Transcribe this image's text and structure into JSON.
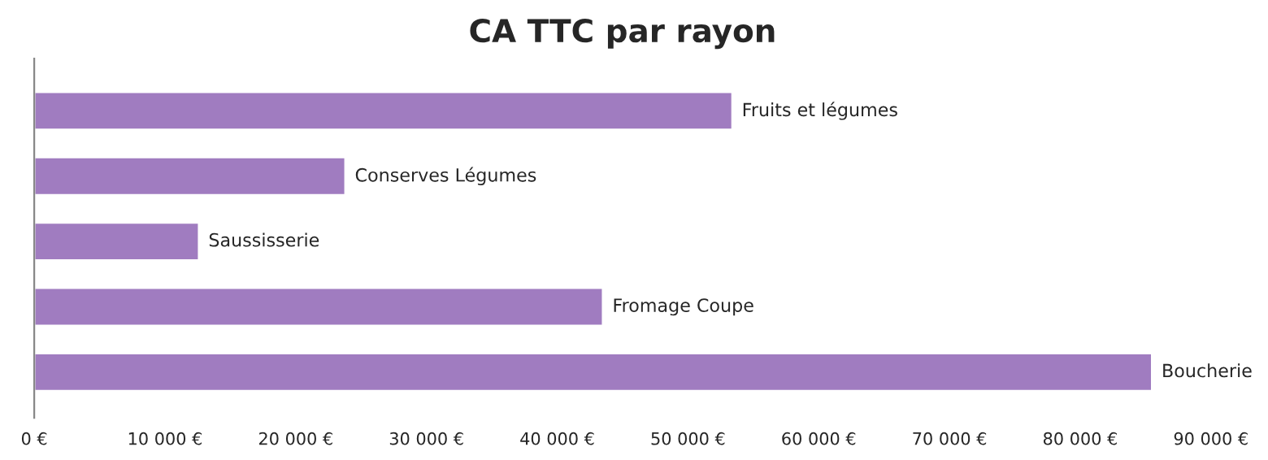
{
  "chart_data": {
    "type": "bar",
    "orientation": "horizontal",
    "title": "CA TTC par rayon",
    "categories": [
      "Fruits et légumes",
      "Conserves Légumes",
      "Saussisserie",
      "Fromage Coupe",
      "Boucherie"
    ],
    "values": [
      53400,
      23800,
      12600,
      43500,
      85500
    ],
    "color": "#a07cc0",
    "xlim": [
      0,
      90000
    ],
    "xticks": [
      {
        "value": 0,
        "label": "0 €"
      },
      {
        "value": 10000,
        "label": "10 000 €"
      },
      {
        "value": 20000,
        "label": "20 000 €"
      },
      {
        "value": 30000,
        "label": "30 000 €"
      },
      {
        "value": 40000,
        "label": "40 000 €"
      },
      {
        "value": 50000,
        "label": "50 000 €"
      },
      {
        "value": 60000,
        "label": "60 000 €"
      },
      {
        "value": 70000,
        "label": "70 000 €"
      },
      {
        "value": 80000,
        "label": "80 000 €"
      },
      {
        "value": 90000,
        "label": "90 000 €"
      }
    ],
    "grid": false,
    "legend": false
  }
}
